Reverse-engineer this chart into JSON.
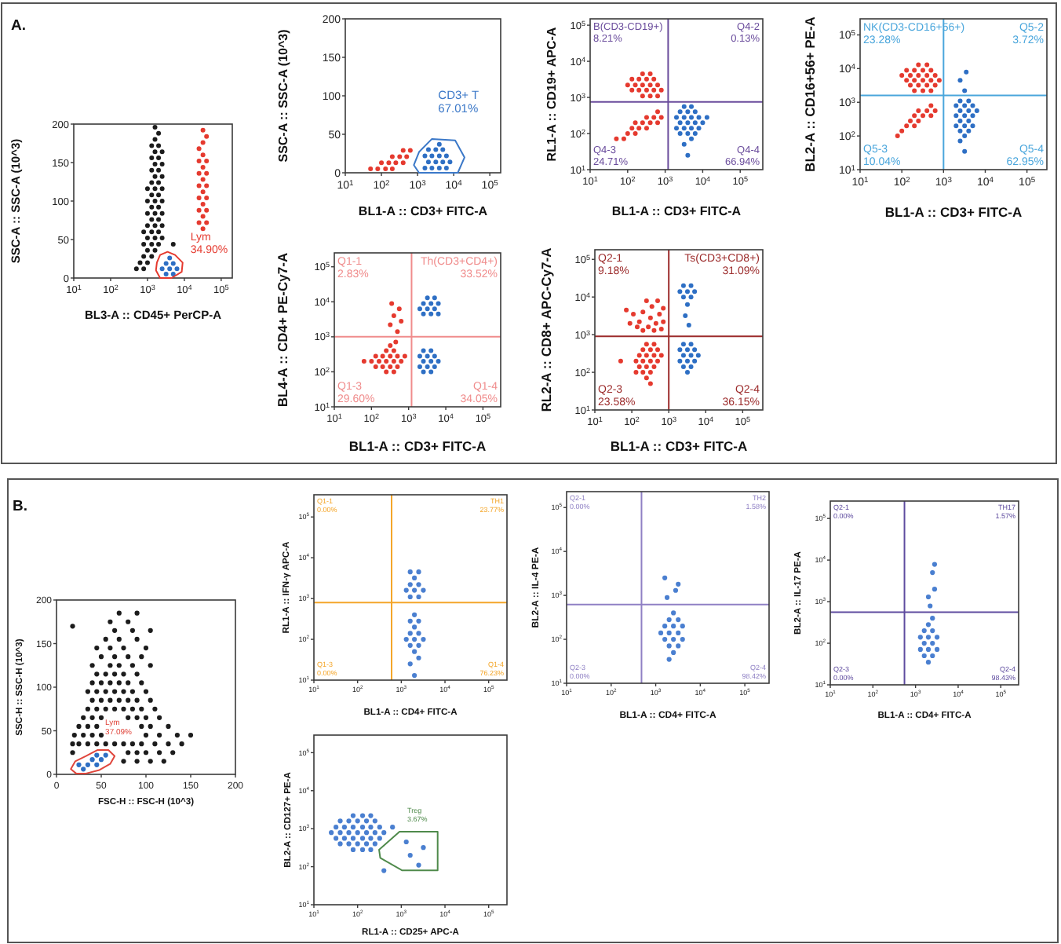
{
  "chart_data": [
    {
      "type": "scatter",
      "title": "A.",
      "xlabel": "BL3-A :: CD45+ PerCP-A",
      "ylabel": "SSC-A :: SSC-A (10^3)",
      "log": "x",
      "xlim": [
        10,
        200000
      ],
      "ylim": [
        0,
        200
      ],
      "xticks": [
        {
          "value": 10,
          "label": "10$^{1}$"
        },
        {
          "value": 100,
          "label": "10$^{2}$"
        },
        {
          "value": 1000,
          "label": "10$^{3}$"
        },
        {
          "value": 10000,
          "label": "10$^{4}$"
        },
        {
          "value": 100000,
          "label": "10$^{5}$"
        }
      ],
      "yticks": [
        0,
        50,
        100,
        150,
        200
      ],
      "series": [
        {
          "color": "#1c1c1c",
          "x": [
            500,
            790,
            630,
            1000,
            790,
            1300,
            1000,
            1600,
            790,
            1300,
            2000,
            5000,
            1000,
            1600,
            2500,
            790,
            1300,
            2000,
            1000,
            1600,
            2500,
            1300,
            2000,
            1000,
            1600,
            2500,
            1300,
            2000,
            1000,
            1600,
            2500,
            1300,
            2000,
            1000,
            1600,
            2500,
            1300,
            2000,
            1600,
            2500,
            1300,
            2000,
            1600,
            2500,
            1300,
            2000,
            1600,
            2500,
            1300,
            2000,
            1600,
            2000,
            1600
          ],
          "values": [
            12,
            12,
            20,
            20,
            28,
            28,
            36,
            36,
            44,
            44,
            44,
            44,
            52,
            52,
            52,
            60,
            60,
            60,
            68,
            68,
            68,
            76,
            76,
            84,
            84,
            84,
            92,
            92,
            100,
            100,
            100,
            108,
            108,
            116,
            116,
            116,
            124,
            124,
            132,
            132,
            140,
            140,
            148,
            148,
            156,
            156,
            164,
            164,
            172,
            172,
            180,
            188,
            196
          ]
        },
        {
          "color": "#e53a2f",
          "x": [
            32000,
            25000,
            40000,
            32000,
            25000,
            40000,
            32000,
            25000,
            40000,
            32000,
            25000,
            40000,
            32000,
            25000,
            40000,
            32000,
            25000,
            40000,
            32000,
            25000,
            32000,
            40000,
            32000
          ],
          "values": [
            64,
            72,
            72,
            80,
            88,
            88,
            96,
            104,
            104,
            112,
            120,
            120,
            128,
            136,
            136,
            144,
            152,
            152,
            160,
            168,
            176,
            184,
            192
          ]
        },
        {
          "color": "#2e6fc4",
          "x": [
            3200,
            5000,
            2500,
            4000,
            6300,
            3200,
            5000,
            4000
          ],
          "values": [
            5,
            5,
            12,
            12,
            12,
            19,
            19,
            26
          ]
        }
      ],
      "annotations": [
        "Lym",
        "34.90%"
      ]
    },
    {
      "type": "scatter",
      "xlabel": "BL1-A :: CD3+ FITC-A",
      "ylabel": "SSC-A :: SSC-A (10^3)",
      "log": "x",
      "xlim": [
        10,
        200000
      ],
      "ylim": [
        0,
        200
      ],
      "xticks": [
        {
          "value": 10,
          "label": "10$^{1}$"
        },
        {
          "value": 100,
          "label": "10$^{2}$"
        },
        {
          "value": 1000,
          "label": "10$^{3}$"
        },
        {
          "value": 10000,
          "label": "10$^{4}$"
        },
        {
          "value": 100000,
          "label": "10$^{5}$"
        }
      ],
      "yticks": [
        0,
        50,
        100,
        150,
        200
      ],
      "series": [
        {
          "color": "#e53a2f",
          "x": [
            50,
            79,
            130,
            200,
            100,
            160,
            250,
            400,
            200,
            320,
            500,
            400,
            630
          ],
          "values": [
            5,
            5,
            5,
            5,
            13,
            13,
            13,
            13,
            21,
            21,
            21,
            29,
            29
          ]
        },
        {
          "color": "#2e6fc4",
          "x": [
            1600,
            2500,
            4000,
            6300,
            2000,
            3200,
            5000,
            7900,
            1600,
            2500,
            4000,
            6300,
            2000,
            3200,
            5000,
            4000
          ],
          "values": [
            6,
            6,
            6,
            6,
            14,
            14,
            14,
            14,
            22,
            22,
            22,
            22,
            30,
            30,
            30,
            37
          ]
        }
      ],
      "annotations": [
        "CD3+ T",
        "67.01%"
      ]
    },
    {
      "type": "scatter",
      "xlabel": "BL1-A :: CD3+ FITC-A",
      "ylabel": "RL1-A :: CD19+ APC-A",
      "log": "xy",
      "xlim": [
        10,
        400000
      ],
      "ylim": [
        10,
        150000
      ],
      "xticks": [
        {
          "value": 10,
          "label": "10$^{1}$"
        },
        {
          "value": 100,
          "label": "10$^{2}$"
        },
        {
          "value": 1000,
          "label": "10$^{3}$"
        },
        {
          "value": 10000,
          "label": "10$^{4}$"
        },
        {
          "value": 100000,
          "label": "10$^{5}$"
        }
      ],
      "yticks": [
        {
          "value": 10,
          "label": "10$^{1}$"
        },
        {
          "value": 100,
          "label": "10$^{2}$"
        },
        {
          "value": 1000,
          "label": "10$^{3}$"
        },
        {
          "value": 10000,
          "label": "10$^{4}$"
        },
        {
          "value": 100000,
          "label": "10$^{5}$"
        }
      ],
      "series": [
        {
          "color": "#e53a2f",
          "x": [
            250,
            400,
            630,
            130,
            200,
            320,
            500,
            790,
            100,
            160,
            250,
            400,
            630,
            130,
            200,
            320,
            500,
            250,
            400,
            50,
            79,
            100,
            160,
            130,
            200,
            320,
            160,
            250,
            400,
            630,
            320,
            500,
            790,
            630
          ],
          "values": [
            1100,
            1100,
            1100,
            1600,
            1600,
            1600,
            1600,
            1600,
            2200,
            2200,
            2200,
            2200,
            2200,
            3200,
            3200,
            3200,
            3200,
            4500,
            4500,
            71,
            71,
            100,
            100,
            140,
            140,
            140,
            200,
            200,
            200,
            200,
            280,
            280,
            280,
            400
          ]
        },
        {
          "color": "#2e6fc4",
          "x": [
            4000,
            3200,
            5000,
            2500,
            4000,
            6300,
            2000,
            3200,
            5000,
            7900,
            2500,
            4000,
            6300,
            10000,
            2000,
            3200,
            5000,
            7900,
            13000,
            2500,
            4000,
            6300,
            3200,
            5000
          ],
          "values": [
            25,
            50,
            71,
            100,
            100,
            100,
            140,
            140,
            140,
            140,
            200,
            200,
            200,
            200,
            280,
            280,
            280,
            280,
            280,
            400,
            400,
            400,
            560,
            560
          ]
        }
      ],
      "ref_lines": [
        {
          "axis": "x",
          "value": 1200,
          "color": "#6a4c9c"
        },
        {
          "axis": "y",
          "value": 750,
          "color": "#6a4c9c"
        }
      ],
      "annotations": [
        "B(CD3-CD19+)",
        "8.21%",
        "Q4-2",
        "0.13%",
        "Q4-3",
        "24.71%",
        "Q4-4",
        "66.94%"
      ]
    },
    {
      "type": "scatter",
      "xlabel": "BL1-A :: CD3+ FITC-A",
      "ylabel": "BL2-A :: CD16+56+ PE-A",
      "log": "xy",
      "xlim": [
        10,
        300000
      ],
      "ylim": [
        10,
        300000
      ],
      "xticks": [
        {
          "value": 10,
          "label": "10$^{1}$"
        },
        {
          "value": 100,
          "label": "10$^{2}$"
        },
        {
          "value": 1000,
          "label": "10$^{3}$"
        },
        {
          "value": 10000,
          "label": "10$^{4}$"
        },
        {
          "value": 100000,
          "label": "10$^{5}$"
        }
      ],
      "yticks": [
        {
          "value": 10,
          "label": "10$^{1}$"
        },
        {
          "value": 100,
          "label": "10$^{2}$"
        },
        {
          "value": 1000,
          "label": "10$^{3}$"
        },
        {
          "value": 10000,
          "label": "10$^{4}$"
        },
        {
          "value": 100000,
          "label": "10$^{5}$"
        }
      ],
      "series": [
        {
          "color": "#e53a2f",
          "x": [
            200,
            320,
            500,
            160,
            250,
            400,
            630,
            130,
            200,
            320,
            500,
            790,
            100,
            160,
            250,
            400,
            630,
            130,
            200,
            320,
            500,
            250,
            400,
            79,
            100,
            130,
            200,
            160,
            250,
            200,
            320,
            500,
            250,
            400,
            630,
            500
          ],
          "values": [
            2200,
            2200,
            2200,
            3200,
            3200,
            3200,
            3200,
            4500,
            4500,
            4500,
            4500,
            4500,
            6300,
            6300,
            6300,
            6300,
            6300,
            8900,
            8900,
            8900,
            8900,
            13000,
            13000,
            100,
            140,
            200,
            200,
            280,
            280,
            400,
            400,
            400,
            560,
            560,
            560,
            790
          ]
        },
        {
          "color": "#2e6fc4",
          "x": [
            3200,
            2500,
            3200,
            2500,
            4000,
            2000,
            3200,
            5000,
            2500,
            4000,
            2000,
            3200,
            5000,
            2500,
            4000,
            6300,
            2000,
            3200,
            5000,
            2500,
            4000,
            3200,
            2500,
            3500
          ],
          "values": [
            35,
            71,
            100,
            140,
            140,
            200,
            200,
            200,
            280,
            280,
            400,
            400,
            400,
            560,
            560,
            560,
            790,
            790,
            790,
            1100,
            1100,
            2200,
            4500,
            7900
          ]
        }
      ],
      "ref_lines": [
        {
          "axis": "x",
          "value": 1000,
          "color": "#4aa6dc"
        },
        {
          "axis": "y",
          "value": 1600,
          "color": "#4aa6dc"
        }
      ],
      "annotations": [
        "NK(CD3-CD16+56+)",
        "23.28%",
        "Q5-2",
        "3.72%",
        "Q5-3",
        "10.04%",
        "Q5-4",
        "62.95%"
      ]
    },
    {
      "type": "scatter",
      "xlabel": "BL1-A :: CD3+ FITC-A",
      "ylabel": "BL4-A :: CD4+ PE-Cy7-A",
      "log": "xy",
      "xlim": [
        10,
        300000
      ],
      "ylim": [
        10,
        250000
      ],
      "xticks": [
        {
          "value": 10,
          "label": "10$^{1}$"
        },
        {
          "value": 100,
          "label": "10$^{2}$"
        },
        {
          "value": 1000,
          "label": "10$^{3}$"
        },
        {
          "value": 10000,
          "label": "10$^{4}$"
        },
        {
          "value": 100000,
          "label": "10$^{5}$"
        }
      ],
      "yticks": [
        {
          "value": 10,
          "label": "10$^{1}$"
        },
        {
          "value": 100,
          "label": "10$^{2}$"
        },
        {
          "value": 1000,
          "label": "10$^{3}$"
        },
        {
          "value": 10000,
          "label": "10$^{4}$"
        },
        {
          "value": 100000,
          "label": "10$^{5}$"
        }
      ],
      "series": [
        {
          "color": "#e53a2f",
          "x": [
            250,
            400,
            130,
            200,
            320,
            500,
            63,
            100,
            160,
            250,
            400,
            630,
            130,
            200,
            320,
            500,
            790,
            250,
            400,
            320,
            500,
            320,
            630,
            400,
            560,
            350,
            450
          ],
          "values": [
            100,
            100,
            140,
            140,
            140,
            140,
            200,
            200,
            200,
            200,
            200,
            200,
            280,
            280,
            280,
            280,
            280,
            400,
            400,
            560,
            1400,
            2200,
            2800,
            4000,
            6300,
            8900,
            710
          ]
        },
        {
          "color": "#2e6fc4",
          "x": [
            2500,
            4000,
            6300,
            2000,
            3200,
            5000,
            2500,
            4000,
            6300,
            3200,
            5000,
            2500,
            4000,
            2000,
            3200,
            5000,
            2500,
            4000,
            6300,
            2000,
            3200,
            5000,
            2500,
            4000
          ],
          "values": [
            4500,
            4500,
            4500,
            6300,
            6300,
            6300,
            8900,
            8900,
            8900,
            13000,
            13000,
            100,
            100,
            140,
            140,
            140,
            200,
            200,
            200,
            280,
            280,
            280,
            400,
            400
          ]
        }
      ],
      "ref_lines": [
        {
          "axis": "x",
          "value": 1200,
          "color": "#f08c8c"
        },
        {
          "axis": "y",
          "value": 1000,
          "color": "#f08c8c"
        }
      ],
      "annotations": [
        "Q1-1",
        "2.83%",
        "Th(CD3+CD4+)",
        "33.52%",
        "Q1-3",
        "29.60%",
        "Q1-4",
        "34.05%"
      ]
    },
    {
      "type": "scatter",
      "xlabel": "BL1-A :: CD3+ FITC-A",
      "ylabel": "RL2-A :: CD8+ APC-Cy7-A",
      "log": "xy",
      "xlim": [
        10,
        350000
      ],
      "ylim": [
        10,
        180000
      ],
      "xticks": [
        {
          "value": 10,
          "label": "10$^{1}$"
        },
        {
          "value": 100,
          "label": "10$^{2}$"
        },
        {
          "value": 1000,
          "label": "10$^{3}$"
        },
        {
          "value": 10000,
          "label": "10$^{4}$"
        },
        {
          "value": 100000,
          "label": "10$^{5}$"
        }
      ],
      "yticks": [
        {
          "value": 10,
          "label": "10$^{1}$"
        },
        {
          "value": 100,
          "label": "10$^{2}$"
        },
        {
          "value": 1000,
          "label": "10$^{3}$"
        },
        {
          "value": 10000,
          "label": "10$^{4}$"
        },
        {
          "value": 100000,
          "label": "10$^{5}$"
        }
      ],
      "series": [
        {
          "color": "#e53a2f",
          "x": [
            320,
            250,
            130,
            200,
            320,
            160,
            250,
            400,
            50,
            130,
            200,
            320,
            500,
            160,
            250,
            400,
            630,
            200,
            320,
            500,
            250,
            400,
            320,
            200,
            450,
            160,
            560,
            280,
            350,
            110,
            710,
            200,
            500,
            89,
            630,
            250,
            71,
            710,
            140,
            400
          ],
          "values": [
            50,
            71,
            100,
            100,
            100,
            140,
            140,
            140,
            200,
            200,
            200,
            200,
            200,
            280,
            280,
            280,
            280,
            400,
            400,
            400,
            560,
            560,
            2800,
            4000,
            2000,
            2200,
            3500,
            1600,
            5600,
            3500,
            2200,
            1300,
            7900,
            2000,
            1400,
            7900,
            4500,
            5000,
            1600,
            1300
          ]
        },
        {
          "color": "#2e6fc4",
          "x": [
            2500,
            4000,
            2000,
            3200,
            5000,
            2500,
            4000,
            3200,
            2800,
            3500,
            3200,
            2500,
            4000,
            2000,
            3200,
            5000,
            2500,
            4000,
            6300,
            2000,
            3200,
            5000,
            2500,
            4000
          ],
          "values": [
            10000,
            10000,
            14000,
            14000,
            14000,
            20000,
            20000,
            6300,
            3200,
            1800,
            100,
            140,
            140,
            200,
            200,
            200,
            280,
            280,
            280,
            400,
            400,
            400,
            560,
            560
          ]
        }
      ],
      "ref_lines": [
        {
          "axis": "x",
          "value": 1000,
          "color": "#9c2b2b"
        },
        {
          "axis": "y",
          "value": 900,
          "color": "#9c2b2b"
        }
      ],
      "annotations": [
        "Q2-1",
        "9.18%",
        "Ts(CD3+CD8+)",
        "31.09%",
        "Q2-3",
        "23.58%",
        "Q2-4",
        "36.15%"
      ]
    },
    {
      "type": "scatter",
      "title": "B.",
      "xlabel": "FSC-H :: FSC-H (10^3)",
      "ylabel": "SSC-H :: SSC-H (10^3)",
      "xlim": [
        0,
        200
      ],
      "ylim": [
        0,
        200
      ],
      "xticks": [
        0,
        50,
        100,
        150,
        200
      ],
      "yticks": [
        0,
        50,
        100,
        150,
        200
      ],
      "series": [
        {
          "color": "#1c1c1c",
          "x": [
            75,
            90,
            105,
            120,
            18,
            80,
            90,
            100,
            115,
            130,
            18,
            25,
            35,
            45,
            55,
            65,
            75,
            85,
            95,
            110,
            125,
            140,
            20,
            30,
            40,
            50,
            100,
            115,
            135,
            150,
            25,
            35,
            45,
            95,
            105,
            125,
            30,
            40,
            50,
            80,
            90,
            100,
            115,
            35,
            45,
            55,
            65,
            75,
            85,
            95,
            110,
            40,
            50,
            60,
            70,
            80,
            90,
            105,
            35,
            45,
            55,
            65,
            75,
            85,
            100,
            40,
            50,
            60,
            70,
            80,
            95,
            45,
            55,
            65,
            75,
            90,
            40,
            60,
            70,
            85,
            105,
            50,
            65,
            80,
            95,
            45,
            60,
            75,
            100,
            55,
            70,
            90,
            65,
            85,
            105,
            60,
            80,
            70,
            90,
            18
          ],
          "values": [
            15,
            15,
            15,
            15,
            25,
            25,
            25,
            25,
            25,
            25,
            35,
            35,
            35,
            35,
            35,
            35,
            35,
            35,
            35,
            35,
            35,
            35,
            45,
            45,
            45,
            45,
            45,
            45,
            45,
            45,
            55,
            55,
            55,
            55,
            55,
            55,
            65,
            65,
            65,
            65,
            65,
            65,
            65,
            75,
            75,
            75,
            75,
            75,
            75,
            75,
            75,
            85,
            85,
            85,
            85,
            85,
            85,
            85,
            95,
            95,
            95,
            95,
            95,
            95,
            95,
            105,
            105,
            105,
            105,
            105,
            105,
            115,
            115,
            115,
            115,
            115,
            125,
            125,
            125,
            125,
            125,
            135,
            135,
            135,
            135,
            145,
            145,
            145,
            145,
            155,
            155,
            155,
            165,
            165,
            165,
            175,
            175,
            185,
            185,
            170
          ]
        },
        {
          "color": "#2e6fc4",
          "x": [
            30,
            25,
            35,
            45,
            40,
            50,
            45,
            55
          ],
          "values": [
            6,
            11,
            11,
            11,
            17,
            17,
            22,
            22
          ]
        }
      ],
      "annotations": [
        "Lym",
        "37.09%"
      ]
    },
    {
      "type": "scatter",
      "xlabel": "BL1-A :: CD4+ FITC-A",
      "ylabel": "RL1-A :: IFN-γ APC-A",
      "log": "xy",
      "xlim": [
        10,
        262144
      ],
      "ylim": [
        10,
        350000
      ],
      "xticks": [
        {
          "value": 10,
          "label": "10$^{1}$"
        },
        {
          "value": 100,
          "label": "10$^{2}$"
        },
        {
          "value": 1000,
          "label": "10$^{3}$"
        },
        {
          "value": 10000,
          "label": "10$^{4}$"
        },
        {
          "value": 100000,
          "label": "10$^{5}$"
        }
      ],
      "yticks": [
        {
          "value": 10,
          "label": "10$^{1}$"
        },
        {
          "value": 100,
          "label": "10$^{2}$"
        },
        {
          "value": 1000,
          "label": "10$^{3}$"
        },
        {
          "value": 10000,
          "label": "10$^{4}$"
        },
        {
          "value": 100000,
          "label": "10$^{5}$"
        }
      ],
      "series": [
        {
          "color": "#4a7fd0",
          "x": [
            1600,
            2500,
            1300,
            2000,
            3200,
            1600,
            2500,
            2000,
            1600,
            2500,
            2000,
            1600,
            2500,
            2000,
            1600,
            2500,
            1300,
            2000,
            3200,
            1600,
            2500,
            2000,
            1600,
            2500,
            2000
          ],
          "values": [
            1100,
            1100,
            1600,
            1600,
            1600,
            2200,
            2200,
            3200,
            4500,
            4500,
            13,
            25,
            35,
            50,
            71,
            71,
            100,
            100,
            100,
            140,
            140,
            200,
            280,
            280,
            400
          ]
        }
      ],
      "ref_lines": [
        {
          "axis": "x",
          "value": 600,
          "color": "#f4a62a"
        },
        {
          "axis": "y",
          "value": 800,
          "color": "#f4a62a"
        }
      ],
      "annotations": [
        "Q1-1",
        "0.00%",
        "TH1",
        "23.77%",
        "Q1-3",
        "0.00%",
        "Q1-4",
        "76.23%"
      ]
    },
    {
      "type": "scatter",
      "xlabel": "BL1-A :: CD4+ FITC-A",
      "ylabel": "BL2-A :: IL-4 PE-A",
      "log": "xy",
      "xlim": [
        10,
        350000
      ],
      "ylim": [
        10,
        230000
      ],
      "xticks": [
        {
          "value": 10,
          "label": "10$^{1}$"
        },
        {
          "value": 100,
          "label": "10$^{2}$"
        },
        {
          "value": 1000,
          "label": "10$^{3}$"
        },
        {
          "value": 10000,
          "label": "10$^{4}$"
        },
        {
          "value": 100000,
          "label": "10$^{5}$"
        }
      ],
      "yticks": [
        {
          "value": 10,
          "label": "10$^{1}$"
        },
        {
          "value": 100,
          "label": "10$^{2}$"
        },
        {
          "value": 1000,
          "label": "10$^{3}$"
        },
        {
          "value": 10000,
          "label": "10$^{4}$"
        },
        {
          "value": 100000,
          "label": "10$^{5}$"
        }
      ],
      "series": [
        {
          "color": "#4a7fd0",
          "x": [
            2000,
            2500,
            2000,
            3200,
            1600,
            2500,
            4000,
            1300,
            2000,
            3200,
            1600,
            2500,
            4000,
            2000,
            3200,
            2500,
            1800,
            2800,
            3200,
            1600
          ],
          "values": [
            35,
            50,
            71,
            71,
            100,
            100,
            100,
            140,
            140,
            140,
            200,
            200,
            200,
            280,
            280,
            400,
            890,
            1300,
            1800,
            2500
          ]
        }
      ],
      "ref_lines": [
        {
          "axis": "x",
          "value": 480,
          "color": "#8f80c4"
        },
        {
          "axis": "y",
          "value": 620,
          "color": "#8f80c4"
        }
      ],
      "annotations": [
        "Q2-1",
        "0.00%",
        "TH2",
        "1.58%",
        "Q2-3",
        "0.00%",
        "Q2-4",
        "98.42%"
      ]
    },
    {
      "type": "scatter",
      "xlabel": "BL1-A :: CD4+ FITC-A",
      "ylabel": "BL2-A :: IL-17 PE-A",
      "log": "xy",
      "xlim": [
        10,
        262144
      ],
      "ylim": [
        10,
        262144
      ],
      "xticks": [
        {
          "value": 10,
          "label": "10$^{1}$"
        },
        {
          "value": 100,
          "label": "10$^{2}$"
        },
        {
          "value": 1000,
          "label": "10$^{3}$"
        },
        {
          "value": 10000,
          "label": "10$^{4}$"
        },
        {
          "value": 100000,
          "label": "10$^{5}$"
        }
      ],
      "yticks": [
        {
          "value": 10,
          "label": "10$^{1}$"
        },
        {
          "value": 100,
          "label": "10$^{2}$"
        },
        {
          "value": 1000,
          "label": "10$^{3}$"
        },
        {
          "value": 10000,
          "label": "10$^{4}$"
        },
        {
          "value": 100000,
          "label": "10$^{5}$"
        }
      ],
      "series": [
        {
          "color": "#4a7fd0",
          "x": [
            2000,
            1600,
            2500,
            1300,
            2000,
            3200,
            1600,
            2500,
            1300,
            2000,
            3200,
            1600,
            2500,
            2000,
            2500,
            2200,
            2000,
            2800,
            2500,
            2800
          ],
          "values": [
            35,
            50,
            50,
            71,
            71,
            71,
            100,
            100,
            140,
            140,
            140,
            200,
            200,
            280,
            400,
            790,
            1300,
            2000,
            5000,
            7900
          ]
        }
      ],
      "ref_lines": [
        {
          "axis": "x",
          "value": 550,
          "color": "#5e4b9f"
        },
        {
          "axis": "y",
          "value": 560,
          "color": "#5e4b9f"
        }
      ],
      "annotations": [
        "Q2-1",
        "0.00%",
        "TH17",
        "1.57%",
        "Q2-3",
        "0.00%",
        "Q2-4",
        "98.43%"
      ]
    },
    {
      "type": "scatter",
      "xlabel": "RL1-A :: CD25+ APC-A",
      "ylabel": "BL2-A :: CD127+ PE-A",
      "log": "xy",
      "xlim": [
        10,
        262144
      ],
      "ylim": [
        10,
        290000
      ],
      "xticks": [
        {
          "value": 10,
          "label": "10$^{1}$"
        },
        {
          "value": 100,
          "label": "10$^{2}$"
        },
        {
          "value": 1000,
          "label": "10$^{3}$"
        },
        {
          "value": 10000,
          "label": "10$^{4}$"
        },
        {
          "value": 100000,
          "label": "10$^{5}$"
        }
      ],
      "yticks": [
        {
          "value": 10,
          "label": "10$^{1}$"
        },
        {
          "value": 100,
          "label": "10$^{2}$"
        },
        {
          "value": 1000,
          "label": "10$^{3}$"
        },
        {
          "value": 10000,
          "label": "10$^{4}$"
        },
        {
          "value": 100000,
          "label": "10$^{5}$"
        }
      ],
      "series": [
        {
          "color": "#4a7fd0",
          "x": [
            79,
            130,
            200,
            40,
            63,
            100,
            160,
            250,
            32,
            50,
            79,
            130,
            200,
            320,
            25,
            40,
            63,
            100,
            160,
            250,
            400,
            32,
            50,
            79,
            130,
            200,
            320,
            40,
            63,
            100,
            160,
            250,
            79,
            130,
            200,
            1600,
            2500,
            3200,
            1300,
            400,
            630
          ],
          "values": [
            280,
            280,
            280,
            400,
            400,
            400,
            400,
            400,
            560,
            560,
            560,
            560,
            560,
            560,
            790,
            790,
            790,
            790,
            790,
            790,
            790,
            1100,
            1100,
            1100,
            1100,
            1100,
            1100,
            1600,
            1600,
            1600,
            1600,
            1600,
            2200,
            2200,
            2200,
            200,
            110,
            320,
            450,
            79,
            1100
          ]
        }
      ],
      "annotations": [
        "Treg",
        "3.67%"
      ]
    }
  ]
}
